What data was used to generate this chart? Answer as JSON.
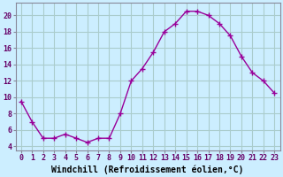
{
  "x": [
    0,
    1,
    2,
    3,
    4,
    5,
    6,
    7,
    8,
    9,
    10,
    11,
    12,
    13,
    14,
    15,
    16,
    17,
    18,
    19,
    20,
    21,
    22,
    23
  ],
  "y": [
    9.5,
    7.0,
    5.0,
    5.0,
    5.5,
    5.0,
    4.5,
    5.0,
    5.0,
    8.0,
    12.0,
    13.5,
    15.5,
    18.0,
    19.0,
    20.5,
    20.5,
    20.0,
    19.0,
    17.5,
    15.0,
    13.0,
    12.0,
    10.5
  ],
  "line_color": "#990099",
  "marker": "+",
  "marker_size": 4,
  "marker_lw": 1.0,
  "bg_color": "#cceeff",
  "grid_color": "#aacccc",
  "xlabel": "Windchill (Refroidissement éolien,°C)",
  "xlim": [
    -0.5,
    23.5
  ],
  "ylim": [
    3.5,
    21.5
  ],
  "yticks": [
    4,
    6,
    8,
    10,
    12,
    14,
    16,
    18,
    20
  ],
  "xticks": [
    0,
    1,
    2,
    3,
    4,
    5,
    6,
    7,
    8,
    9,
    10,
    11,
    12,
    13,
    14,
    15,
    16,
    17,
    18,
    19,
    20,
    21,
    22,
    23
  ],
  "tick_label_fontsize": 6.0,
  "xlabel_fontsize": 7.0,
  "spine_color": "#888899",
  "line_width": 1.0
}
